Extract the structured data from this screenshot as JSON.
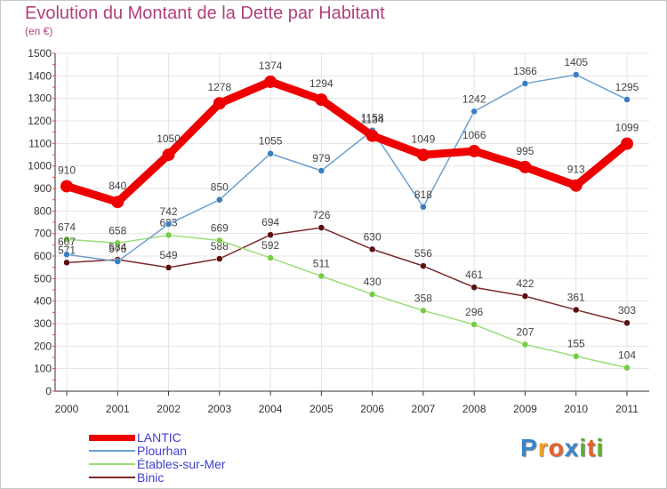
{
  "title": "Evolution du Montant de la Dette par Habitant",
  "subtitle": "(en €)",
  "logo": {
    "text": "Proxiti",
    "letters": [
      "P",
      "r",
      "o",
      "x",
      "i",
      "t",
      "i"
    ],
    "letter_colors": [
      "#3a86c8",
      "#f0a020",
      "#e8602c",
      "#3a86c8",
      "#5cb030",
      "#e8602c",
      "#5cb030"
    ]
  },
  "chart_data": {
    "type": "line",
    "x": [
      "2000",
      "2001",
      "2002",
      "2003",
      "2004",
      "2005",
      "2006",
      "2007",
      "2008",
      "2009",
      "2010",
      "2011"
    ],
    "ylim": [
      0,
      1500
    ],
    "yticks": [
      "0",
      "100",
      "200",
      "300",
      "400",
      "500",
      "600",
      "700",
      "800",
      "900",
      "1000",
      "1100",
      "1200",
      "1300",
      "1400",
      "1500"
    ],
    "grid": true,
    "legend_position": "bottom-left",
    "series": [
      {
        "name": "Binic",
        "color": "#7a2a2a",
        "point_color": "#5a1010",
        "values": [
          571,
          584,
          549,
          588,
          694,
          726,
          630,
          556,
          461,
          422,
          361,
          303
        ],
        "labels": [
          "571",
          "584",
          "549",
          "588",
          "694",
          "726",
          "630",
          "556",
          "461",
          "422",
          "361",
          "303"
        ]
      },
      {
        "name": "Étables-sur-Mer",
        "color": "#99dd77",
        "point_color": "#77cc44",
        "values": [
          674,
          658,
          693,
          669,
          592,
          511,
          430,
          358,
          296,
          207,
          155,
          104
        ],
        "labels": [
          "674",
          "658",
          "693",
          "669",
          "592",
          "511",
          "430",
          "358",
          "296",
          "207",
          "155",
          "104"
        ]
      },
      {
        "name": "Plourhan",
        "color": "#6aa0d0",
        "point_color": "#3a7ec0",
        "values": [
          607,
          576,
          742,
          850,
          1055,
          979,
          1158,
          818,
          1242,
          1366,
          1405,
          1295
        ],
        "labels": [
          "607",
          "576",
          "742",
          "850",
          "1055",
          "979",
          "1158",
          "818",
          "1242",
          "1366",
          "1405",
          "1295"
        ]
      },
      {
        "name": "LANTIC",
        "color": "#ee0000",
        "point_color": "#ee0000",
        "values": [
          910,
          840,
          1050,
          1278,
          1374,
          1294,
          1134,
          1049,
          1066,
          995,
          913,
          1099
        ],
        "labels": [
          "910",
          "840",
          "1050",
          "1278",
          "1374",
          "1294",
          "1134",
          "1049",
          "1066",
          "995",
          "913",
          "1099"
        ]
      }
    ]
  },
  "legend": [
    {
      "label": "LANTIC",
      "color": "#ee0000"
    },
    {
      "label": "Plourhan",
      "color": "#6aa0d0"
    },
    {
      "label": "Étables-sur-Mer",
      "color": "#99dd77"
    },
    {
      "label": "Binic",
      "color": "#7a2a2a"
    }
  ]
}
